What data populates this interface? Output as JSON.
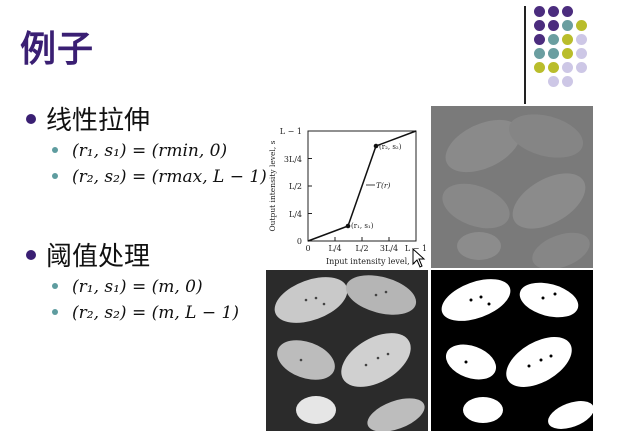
{
  "slide": {
    "title": "例子",
    "sections": [
      {
        "heading": "线性拉伸",
        "items": [
          "(r₁, s₁) = (rmin, 0)",
          "(r₂, s₂) = (rmax, L − 1)"
        ]
      },
      {
        "heading": "阈值处理",
        "items": [
          "(r₁, s₁) = (m, 0)",
          "(r₂, s₂) = (m, L − 1)"
        ]
      }
    ]
  },
  "plot": {
    "ylabel": "Output intensity level, s",
    "xlabel": "Input intensity level, r",
    "yticks": [
      "L − 1",
      "3L/4",
      "L/2",
      "L/4",
      "0"
    ],
    "xticks": [
      "0",
      "L/4",
      "L/2",
      "3L/4",
      "L − 1"
    ],
    "point1": "(r₁, s₁)",
    "point2": "(r₂, s₂)",
    "curve_label": "T(r)"
  },
  "colors": {
    "title": "#3a1f73",
    "purple_dot": "#4b2c7e",
    "teal_dot": "#6a9ea0",
    "olive_dot": "#b9bd2b",
    "lavender_dot": "#cdc7e6"
  }
}
